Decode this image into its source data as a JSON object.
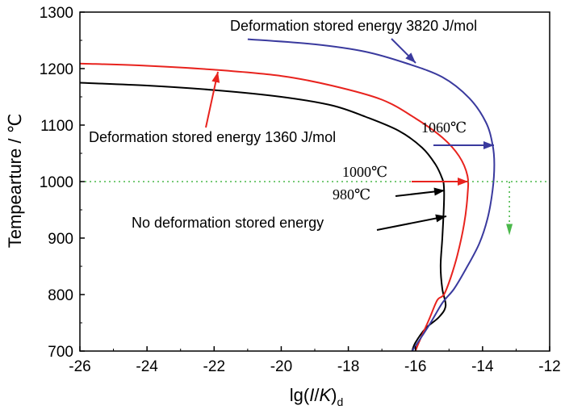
{
  "chart_data": {
    "type": "line",
    "xlabel": "lg(I/K)d",
    "ylabel": "Tempearture / ℃",
    "xlim": [
      -26,
      -12
    ],
    "ylim": [
      700,
      1300
    ],
    "xticks": [
      -26,
      -24,
      -22,
      -20,
      -18,
      -16,
      -14,
      -12
    ],
    "yticks": [
      700,
      800,
      900,
      1000,
      1100,
      1200,
      1300
    ],
    "xtick_labels": [
      "-26",
      "-24",
      "-22",
      "-20",
      "-18",
      "-16",
      "-14",
      "-12"
    ],
    "ytick_labels": [
      "700",
      "800",
      "900",
      "1000",
      "1100",
      "1200",
      "1300"
    ],
    "grid": false,
    "series": [
      {
        "name": "No deformation stored energy",
        "color": "#000000",
        "points": [
          [
            -26,
            1175
          ],
          [
            -24,
            1170
          ],
          [
            -22,
            1162
          ],
          [
            -20,
            1150
          ],
          [
            -18.5,
            1135
          ],
          [
            -17.5,
            1115
          ],
          [
            -16.5,
            1090
          ],
          [
            -15.8,
            1060
          ],
          [
            -15.4,
            1030
          ],
          [
            -15.2,
            1005
          ],
          [
            -15.15,
            990
          ],
          [
            -15.15,
            960
          ],
          [
            -15.2,
            900
          ],
          [
            -15.25,
            850
          ],
          [
            -15.2,
            810
          ],
          [
            -15.1,
            780
          ],
          [
            -15.3,
            760
          ],
          [
            -15.7,
            740
          ],
          [
            -16.0,
            715
          ],
          [
            -16.1,
            700
          ]
        ]
      },
      {
        "name": "Deformation stored energy 1360 J/mol",
        "color": "#e8231e",
        "points": [
          [
            -26,
            1209
          ],
          [
            -24,
            1205
          ],
          [
            -22,
            1198
          ],
          [
            -20,
            1187
          ],
          [
            -18.5,
            1170
          ],
          [
            -17,
            1145
          ],
          [
            -16,
            1112
          ],
          [
            -15.2,
            1078
          ],
          [
            -14.7,
            1045
          ],
          [
            -14.45,
            1010
          ],
          [
            -14.45,
            975
          ],
          [
            -14.55,
            925
          ],
          [
            -14.75,
            870
          ],
          [
            -14.95,
            830
          ],
          [
            -15.15,
            800
          ],
          [
            -15.35,
            790
          ],
          [
            -15.6,
            755
          ],
          [
            -15.9,
            715
          ],
          [
            -16.0,
            700
          ]
        ]
      },
      {
        "name": "Deformation stored energy 3820 J/mol",
        "color": "#3a3a9e",
        "points": [
          [
            -21,
            1252
          ],
          [
            -19,
            1243
          ],
          [
            -17.5,
            1230
          ],
          [
            -16.3,
            1210
          ],
          [
            -15.2,
            1185
          ],
          [
            -14.4,
            1148
          ],
          [
            -13.9,
            1105
          ],
          [
            -13.7,
            1065
          ],
          [
            -13.65,
            1030
          ],
          [
            -13.7,
            985
          ],
          [
            -13.85,
            935
          ],
          [
            -14.1,
            890
          ],
          [
            -14.5,
            845
          ],
          [
            -14.85,
            810
          ],
          [
            -15.2,
            785
          ],
          [
            -15.6,
            745
          ],
          [
            -16.1,
            700
          ]
        ]
      }
    ],
    "reference_line": {
      "y": 1000,
      "color": "#4ab84a",
      "style": "dotted"
    },
    "annotations": [
      {
        "text": "Deformation stored energy 3820 J/mol",
        "color": "#000000"
      },
      {
        "text": "Deformation stored energy 1360 J/mol",
        "color": "#000000"
      },
      {
        "text": "1060℃",
        "color": "#000000"
      },
      {
        "text": "1000℃",
        "color": "#000000"
      },
      {
        "text": "980℃",
        "color": "#000000"
      },
      {
        "text": "No deformation stored energy",
        "color": "#000000"
      }
    ],
    "axis_title_parts": {
      "x_prefix": "lg(",
      "x_italic": "I",
      "x_slash": "/",
      "x_italic2": "K",
      "x_suffix": ")",
      "x_sub": "d",
      "y": "Tempearture / ℃"
    }
  }
}
